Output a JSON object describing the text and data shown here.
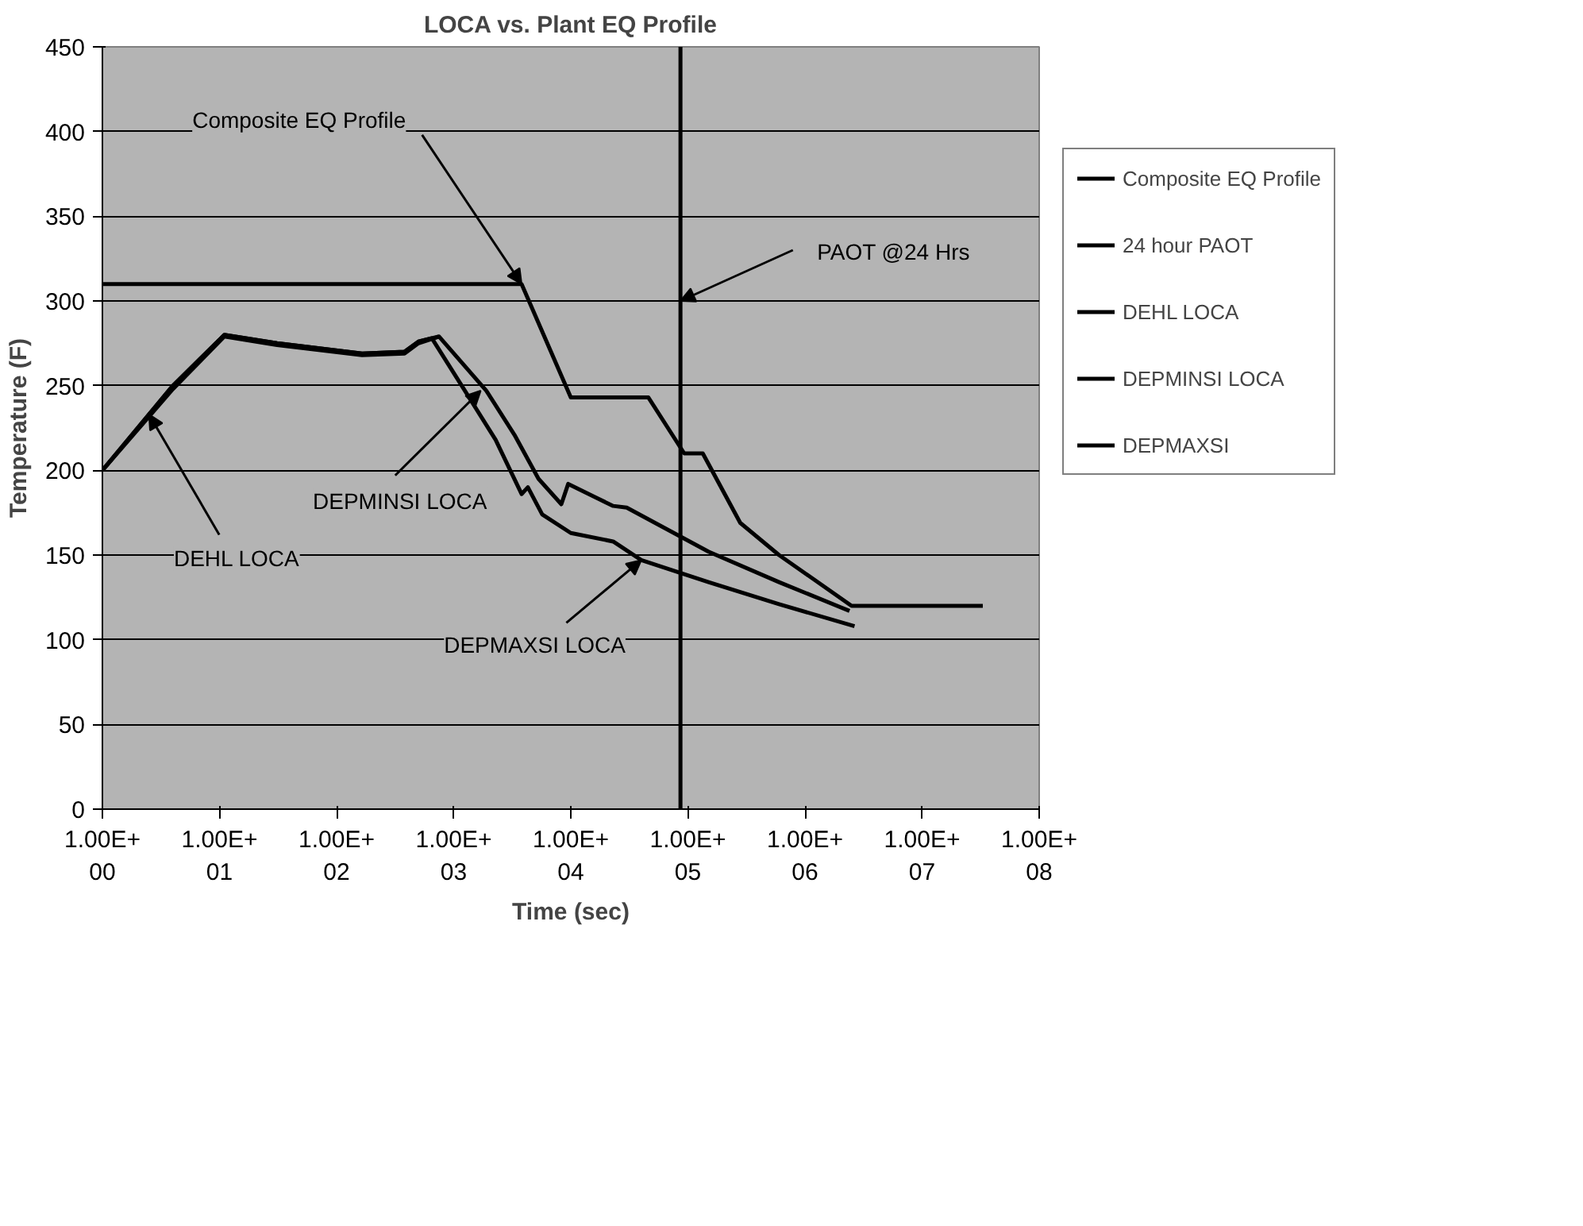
{
  "chart_data": {
    "type": "line",
    "title": "LOCA vs. Plant EQ Profile",
    "xlabel": "Time (sec)",
    "ylabel": "Temperature (F)",
    "log": "x",
    "xlim": [
      1,
      100000000
    ],
    "ylim": [
      0,
      450
    ],
    "xticks": [
      {
        "value": 1,
        "label": "1.00E+00"
      },
      {
        "value": 10,
        "label": "1.00E+01"
      },
      {
        "value": 100,
        "label": "1.00E+02"
      },
      {
        "value": 1000,
        "label": "1.00E+03"
      },
      {
        "value": 10000,
        "label": "1.00E+04"
      },
      {
        "value": 100000,
        "label": "1.00E+05"
      },
      {
        "value": 1000000,
        "label": "1.00E+06"
      },
      {
        "value": 10000000,
        "label": "1.00E+07"
      },
      {
        "value": 100000000,
        "label": "1.00E+08"
      }
    ],
    "yticks": [
      0,
      50,
      100,
      150,
      200,
      250,
      300,
      350,
      400,
      450
    ],
    "grid": "y",
    "legend": "right",
    "series": [
      {
        "name": "Composite EQ Profile",
        "color": "#000000",
        "x": [
          1,
          3800,
          10000,
          46000,
          93000,
          134000,
          280000,
          600000,
          2500000,
          33000000
        ],
        "values": [
          310,
          310,
          243,
          243,
          210,
          210,
          169,
          150,
          120,
          120
        ]
      },
      {
        "name": "24 hour PAOT",
        "color": "#000000",
        "x": [
          86400,
          86400
        ],
        "values": [
          0,
          450
        ]
      },
      {
        "name": "DEHL LOCA",
        "color": "#000000",
        "x": [
          1,
          4,
          11,
          31,
          165,
          380,
          500,
          750
        ],
        "values": [
          200,
          250,
          280,
          275,
          269,
          270,
          276,
          279
        ]
      },
      {
        "name": "DEPMINSI LOCA",
        "color": "#000000",
        "x": [
          1,
          4,
          11,
          31,
          165,
          380,
          500,
          750,
          1900,
          3300,
          5300,
          8300,
          9500,
          17400,
          23000,
          30000,
          150000,
          600000,
          2400000
        ],
        "values": [
          200,
          248,
          279,
          274,
          268,
          269,
          275,
          279,
          247,
          221,
          195,
          180,
          192,
          183,
          179,
          178,
          152,
          134,
          117
        ]
      },
      {
        "name": "DEPMAXSI",
        "color": "#000000",
        "x": [
          1,
          4,
          11,
          31,
          165,
          380,
          500,
          650,
          1170,
          2280,
          3800,
          4300,
          5700,
          10000,
          23000,
          40000,
          150000,
          600000,
          2650000
        ],
        "values": [
          200,
          250,
          280,
          275,
          269,
          270,
          276,
          278,
          250,
          218,
          186,
          190,
          174,
          163,
          158,
          147,
          134,
          121,
          108
        ]
      }
    ],
    "annotations": [
      {
        "text": "Composite EQ Profile",
        "x": 3800,
        "y": 310
      },
      {
        "text": "PAOT @24 Hrs",
        "x": 86400,
        "y": 300
      },
      {
        "text": "DEHL LOCA",
        "x": 2.5,
        "y": 233
      },
      {
        "text": "DEPMINSI LOCA",
        "x": 1700,
        "y": 247
      },
      {
        "text": "DEPMAXSI LOCA",
        "x": 40000,
        "y": 147
      }
    ]
  }
}
